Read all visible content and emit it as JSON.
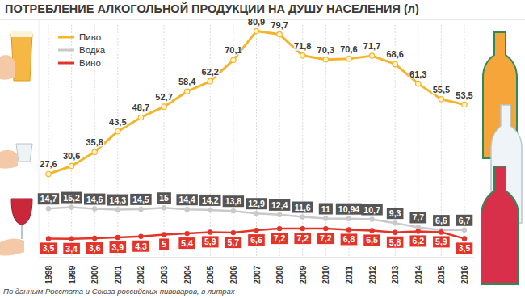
{
  "chart_data": {
    "type": "line",
    "title": "ПОТРЕБЛЕНИЕ АЛКОГОЛЬНОЙ ПРОДУКЦИИ НА ДУШУ НАСЕЛЕНИЯ (л)",
    "source": "По данным Росстата и Союза российских пивоваров, в литрах",
    "categories": [
      "1998",
      "1999",
      "2000",
      "2001",
      "2002",
      "2003",
      "2004",
      "2005",
      "2006",
      "2007",
      "2008",
      "2009",
      "2010",
      "2011",
      "2012",
      "2013",
      "2014",
      "2015",
      "2016"
    ],
    "series": [
      {
        "name": "Пиво",
        "color": "#f4b52b",
        "marker": "circle",
        "values": [
          27.6,
          30.6,
          35.8,
          43.5,
          48.7,
          52.7,
          58.4,
          62.2,
          70.1,
          80.9,
          79.7,
          71.8,
          70.3,
          70.6,
          71.7,
          68.6,
          61.3,
          55.5,
          53.5
        ],
        "value_labels": [
          "27,6",
          "30,6",
          "35,8",
          "43,5",
          "48,7",
          "52,7",
          "58,4",
          "62,2",
          "70,1",
          "80,9",
          "79,7",
          "71,8",
          "70,3",
          "70,6",
          "71,7",
          "68,6",
          "61,3",
          "55,5",
          "53,5"
        ]
      },
      {
        "name": "Водка",
        "color": "#c9c9c9",
        "marker": "circle",
        "values": [
          14.7,
          15.2,
          14.6,
          14.3,
          14.5,
          15,
          14.4,
          14.2,
          13.8,
          12.9,
          12.4,
          11.6,
          11,
          10.94,
          10.7,
          9.3,
          7.7,
          6.6,
          6.7
        ],
        "value_labels": [
          "14,7",
          "15,2",
          "14,6",
          "14,3",
          "14,5",
          "15",
          "14,4",
          "14,2",
          "13,8",
          "12,9",
          "12,4",
          "11,6",
          "11",
          "10,94",
          "10,7",
          "9,3",
          "7,7",
          "6,6",
          "6,7"
        ]
      },
      {
        "name": "Вино",
        "color": "#e3342a",
        "marker": "circle",
        "values": [
          3.5,
          3.4,
          3.6,
          3.9,
          4.3,
          5,
          5.4,
          5.9,
          5.7,
          6.6,
          7.2,
          7.2,
          7.2,
          6.8,
          6.5,
          5.8,
          6.2,
          5.9,
          3.5
        ],
        "value_labels": [
          "3,5",
          "3,4",
          "3,6",
          "3,9",
          "4,3",
          "5",
          "5,4",
          "5,9",
          "5,7",
          "6,6",
          "7,2",
          "7,2",
          "7,2",
          "6,8",
          "6,5",
          "5,8",
          "6,2",
          "5,9",
          "3,5"
        ]
      }
    ],
    "ylim": [
      0,
      85
    ],
    "yticks": [],
    "grid": true,
    "legend": "top-left",
    "data_labels": true,
    "tick_labels": "x"
  }
}
